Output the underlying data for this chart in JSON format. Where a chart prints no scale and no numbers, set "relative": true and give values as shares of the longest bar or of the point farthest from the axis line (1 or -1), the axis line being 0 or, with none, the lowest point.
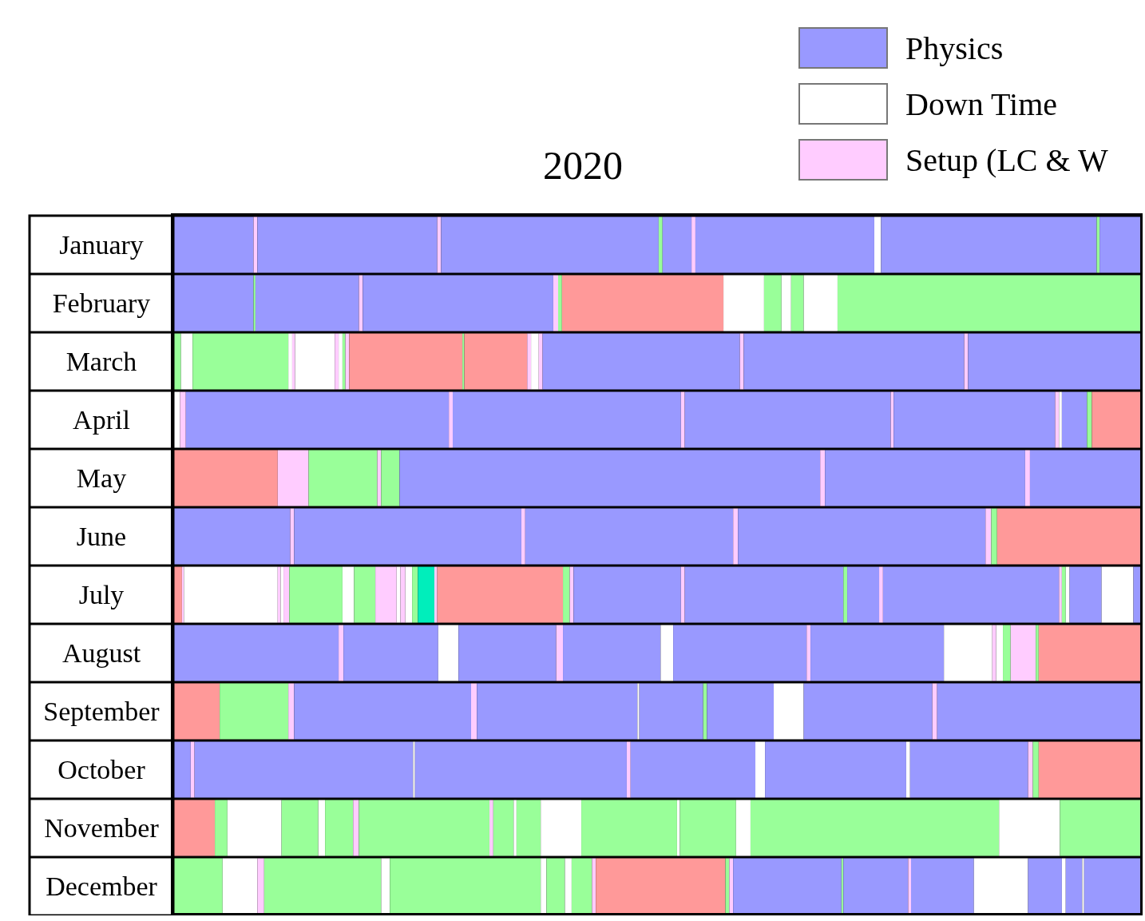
{
  "chart_data": [
    {
      "type": "bar",
      "orientation": "horizontal",
      "stacked": true,
      "relative": true,
      "title": "2020",
      "legend": "top right",
      "categories": [
        "January"
      ],
      "series": [
        {
          "name": "Physics",
          "color": "#9999ff",
          "values": [
            null
          ]
        },
        {
          "name": "Down Time",
          "color": "#ffffff",
          "values": [
            null
          ]
        },
        {
          "name": "Setup (LC & W",
          "color": "#ffccff",
          "values": [
            null
          ]
        },
        {
          "color": "#9999ff",
          "values": [
            0.083
          ]
        },
        {
          "color": "#ffccff",
          "values": [
            0.004
          ]
        },
        {
          "color": "#9999ff",
          "values": [
            0.186
          ]
        },
        {
          "color": "#ffccff",
          "values": [
            0.004
          ]
        },
        {
          "color": "#9999ff",
          "values": [
            0.225
          ]
        },
        {
          "color": "#99ff99",
          "values": [
            0.004
          ]
        },
        {
          "color": "#9999ff",
          "values": [
            0.03
          ]
        },
        {
          "color": "#ffccff",
          "values": [
            0.004
          ]
        },
        {
          "color": "#9999ff",
          "values": [
            0.185
          ]
        },
        {
          "color": "#ffffff",
          "values": [
            0.007
          ]
        },
        {
          "color": "#9999ff",
          "values": [
            0.223
          ]
        },
        {
          "color": "#99ff99",
          "values": [
            0.003
          ]
        },
        {
          "color": "#9999ff",
          "values": [
            0.042
          ]
        }
      ]
    },
    {
      "type": "bar",
      "orientation": "horizontal",
      "stacked": true,
      "relative": true,
      "categories": [
        "February"
      ],
      "series": [
        {
          "color": "#9999ff",
          "values": [
            0.083
          ]
        },
        {
          "color": "#99ff99",
          "values": [
            0.002
          ]
        },
        {
          "color": "#9999ff",
          "values": [
            0.107
          ]
        },
        {
          "color": "#ffccff",
          "values": [
            0.004
          ]
        },
        {
          "color": "#9999ff",
          "values": [
            0.197
          ]
        },
        {
          "color": "#ffccff",
          "values": [
            0.005
          ]
        },
        {
          "color": "#99ff99",
          "values": [
            0.004
          ]
        },
        {
          "color": "#ff9999",
          "values": [
            0.167
          ]
        },
        {
          "color": "#ffffff",
          "values": [
            0.042
          ]
        },
        {
          "color": "#99ff99",
          "values": [
            0.018
          ]
        },
        {
          "color": "#ffffff",
          "values": [
            0.01
          ]
        },
        {
          "color": "#99ff99",
          "values": [
            0.013
          ]
        },
        {
          "color": "#ffffff",
          "values": [
            0.035
          ]
        },
        {
          "color": "#99ff99",
          "values": [
            0.313
          ]
        }
      ]
    },
    {
      "type": "bar",
      "orientation": "horizontal",
      "stacked": true,
      "relative": true,
      "categories": [
        "March"
      ],
      "series": [
        {
          "color": "#99ff99",
          "values": [
            0.008
          ]
        },
        {
          "color": "#ffffff",
          "values": [
            0.012
          ]
        },
        {
          "color": "#99ff99",
          "values": [
            0.099
          ]
        },
        {
          "color": "#ffffff",
          "values": [
            0.004
          ]
        },
        {
          "color": "#ffccff",
          "values": [
            0.003
          ]
        },
        {
          "color": "#ffffff",
          "values": [
            0.041
          ]
        },
        {
          "color": "#ffccff",
          "values": [
            0.004
          ]
        },
        {
          "color": "#ffffff",
          "values": [
            0.004
          ]
        },
        {
          "color": "#99ff99",
          "values": [
            0.003
          ]
        },
        {
          "color": "#ffccff",
          "values": [
            0.004
          ]
        },
        {
          "color": "#ff9999",
          "values": [
            0.117
          ]
        },
        {
          "color": "#99ff99",
          "values": [
            0.002
          ]
        },
        {
          "color": "#ff9999",
          "values": [
            0.065
          ]
        },
        {
          "color": "#ffccff",
          "values": [
            0.004
          ]
        },
        {
          "color": "#ffffff",
          "values": [
            0.008
          ]
        },
        {
          "color": "#ffccff",
          "values": [
            0.004
          ]
        },
        {
          "color": "#9999ff",
          "values": [
            0.204
          ]
        },
        {
          "color": "#ffccff",
          "values": [
            0.004
          ]
        },
        {
          "color": "#9999ff",
          "values": [
            0.228
          ]
        },
        {
          "color": "#ffccff",
          "values": [
            0.004
          ]
        },
        {
          "color": "#9999ff",
          "values": [
            0.178
          ]
        }
      ]
    },
    {
      "type": "bar",
      "orientation": "horizontal",
      "stacked": true,
      "relative": true,
      "categories": [
        "April"
      ],
      "series": [
        {
          "color": "#ffffff",
          "values": [
            0.007
          ]
        },
        {
          "color": "#ffccff",
          "values": [
            0.006
          ]
        },
        {
          "color": "#9999ff",
          "values": [
            0.272
          ]
        },
        {
          "color": "#ffccff",
          "values": [
            0.004
          ]
        },
        {
          "color": "#9999ff",
          "values": [
            0.236
          ]
        },
        {
          "color": "#ffccff",
          "values": [
            0.004
          ]
        },
        {
          "color": "#9999ff",
          "values": [
            0.213
          ]
        },
        {
          "color": "#ffccff",
          "values": [
            0.003
          ]
        },
        {
          "color": "#9999ff",
          "values": [
            0.167
          ]
        },
        {
          "color": "#ffccff",
          "values": [
            0.004
          ]
        },
        {
          "color": "#ffffff",
          "values": [
            0.003
          ]
        },
        {
          "color": "#9999ff",
          "values": [
            0.026
          ]
        },
        {
          "color": "#99ff99",
          "values": [
            0.005
          ]
        },
        {
          "color": "#ff9999",
          "values": [
            0.05
          ]
        }
      ]
    },
    {
      "type": "bar",
      "orientation": "horizontal",
      "stacked": true,
      "relative": true,
      "categories": [
        "May"
      ],
      "series": [
        {
          "color": "#ff9999",
          "values": [
            0.108
          ]
        },
        {
          "color": "#ffccff",
          "values": [
            0.032
          ]
        },
        {
          "color": "#99ff99",
          "values": [
            0.071
          ]
        },
        {
          "color": "#ffccff",
          "values": [
            0.004
          ]
        },
        {
          "color": "#99ff99",
          "values": [
            0.019
          ]
        },
        {
          "color": "#9999ff",
          "values": [
            0.435
          ]
        },
        {
          "color": "#ffccff",
          "values": [
            0.005
          ]
        },
        {
          "color": "#9999ff",
          "values": [
            0.207
          ]
        },
        {
          "color": "#ffccff",
          "values": [
            0.005
          ]
        },
        {
          "color": "#9999ff",
          "values": [
            0.114
          ]
        }
      ]
    },
    {
      "type": "bar",
      "orientation": "horizontal",
      "stacked": true,
      "relative": true,
      "categories": [
        "June"
      ],
      "series": [
        {
          "color": "#9999ff",
          "values": [
            0.121
          ]
        },
        {
          "color": "#ffccff",
          "values": [
            0.004
          ]
        },
        {
          "color": "#9999ff",
          "values": [
            0.235
          ]
        },
        {
          "color": "#ffccff",
          "values": [
            0.004
          ]
        },
        {
          "color": "#9999ff",
          "values": [
            0.215
          ]
        },
        {
          "color": "#ffccff",
          "values": [
            0.005
          ]
        },
        {
          "color": "#9999ff",
          "values": [
            0.256
          ]
        },
        {
          "color": "#ffccff",
          "values": [
            0.006
          ]
        },
        {
          "color": "#99ff99",
          "values": [
            0.006
          ]
        },
        {
          "color": "#ff9999",
          "values": [
            0.148
          ]
        }
      ]
    },
    {
      "type": "bar",
      "orientation": "horizontal",
      "stacked": true,
      "relative": true,
      "categories": [
        "July"
      ],
      "series": [
        {
          "color": "#ff9999",
          "values": [
            0.009
          ]
        },
        {
          "color": "#ffccff",
          "values": [
            0.002
          ]
        },
        {
          "color": "#ffffff",
          "values": [
            0.097
          ]
        },
        {
          "color": "#ffccff",
          "values": [
            0.003
          ]
        },
        {
          "color": "#ffffff",
          "values": [
            0.003
          ]
        },
        {
          "color": "#ffccff",
          "values": [
            0.006
          ]
        },
        {
          "color": "#99ff99",
          "values": [
            0.055
          ]
        },
        {
          "color": "#ffffff",
          "values": [
            0.012
          ]
        },
        {
          "color": "#99ff99",
          "values": [
            0.022
          ]
        },
        {
          "color": "#ffccff",
          "values": [
            0.022
          ]
        },
        {
          "color": "#ffffff",
          "values": [
            0.004
          ]
        },
        {
          "color": "#ffccff",
          "values": [
            0.005
          ]
        },
        {
          "color": "#ffffff",
          "values": [
            0.007
          ]
        },
        {
          "color": "#99ff99",
          "values": [
            0.006
          ]
        },
        {
          "color": "#00eebb",
          "values": [
            0.017
          ]
        },
        {
          "color": "#ffccff",
          "values": [
            0.003
          ]
        },
        {
          "color": "#ff9999",
          "values": [
            0.13
          ]
        },
        {
          "color": "#99ff99",
          "values": [
            0.007
          ]
        },
        {
          "color": "#ffccff",
          "values": [
            0.004
          ]
        },
        {
          "color": "#9999ff",
          "values": [
            0.111
          ]
        },
        {
          "color": "#ffccff",
          "values": [
            0.004
          ]
        },
        {
          "color": "#9999ff",
          "values": [
            0.164
          ]
        },
        {
          "color": "#99ff99",
          "values": [
            0.004
          ]
        },
        {
          "color": "#9999ff",
          "values": [
            0.033
          ]
        },
        {
          "color": "#ffccff",
          "values": [
            0.004
          ]
        },
        {
          "color": "#9999ff",
          "values": [
            0.182
          ]
        },
        {
          "color": "#ffccff",
          "values": [
            0.003
          ]
        },
        {
          "color": "#99ff99",
          "values": [
            0.004
          ]
        },
        {
          "color": "#ffffff",
          "values": [
            0.004
          ]
        },
        {
          "color": "#9999ff",
          "values": [
            0.033
          ]
        },
        {
          "color": "#ffffff",
          "values": [
            0.033
          ]
        },
        {
          "color": "#9999ff",
          "values": [
            0.007
          ]
        }
      ]
    },
    {
      "type": "bar",
      "orientation": "horizontal",
      "stacked": true,
      "relative": true,
      "categories": [
        "August"
      ],
      "series": [
        {
          "color": "#9999ff",
          "values": [
            0.171
          ]
        },
        {
          "color": "#ffccff",
          "values": [
            0.005
          ]
        },
        {
          "color": "#9999ff",
          "values": [
            0.098
          ]
        },
        {
          "color": "#ffffff",
          "values": [
            0.021
          ]
        },
        {
          "color": "#9999ff",
          "values": [
            0.101
          ]
        },
        {
          "color": "#ffccff",
          "values": [
            0.007
          ]
        },
        {
          "color": "#9999ff",
          "values": [
            0.101
          ]
        },
        {
          "color": "#ffffff",
          "values": [
            0.013
          ]
        },
        {
          "color": "#9999ff",
          "values": [
            0.138
          ]
        },
        {
          "color": "#ffccff",
          "values": [
            0.004
          ]
        },
        {
          "color": "#9999ff",
          "values": [
            0.138
          ]
        },
        {
          "color": "#ffffff",
          "values": [
            0.05
          ]
        },
        {
          "color": "#ffccff",
          "values": [
            0.004
          ]
        },
        {
          "color": "#ffffff",
          "values": [
            0.007
          ]
        },
        {
          "color": "#99ff99",
          "values": [
            0.008
          ]
        },
        {
          "color": "#ffccff",
          "values": [
            0.026
          ]
        },
        {
          "color": "#99ff99",
          "values": [
            0.003
          ]
        },
        {
          "color": "#ff9999",
          "values": [
            0.105
          ]
        }
      ]
    },
    {
      "type": "bar",
      "orientation": "horizontal",
      "stacked": true,
      "relative": true,
      "categories": [
        "September"
      ],
      "series": [
        {
          "color": "#ff9999",
          "values": [
            0.048
          ]
        },
        {
          "color": "#99ff99",
          "values": [
            0.071
          ]
        },
        {
          "color": "#ffccff",
          "values": [
            0.006
          ]
        },
        {
          "color": "#9999ff",
          "values": [
            0.183
          ]
        },
        {
          "color": "#ffccff",
          "values": [
            0.006
          ]
        },
        {
          "color": "#9999ff",
          "values": [
            0.166
          ]
        },
        {
          "color": "#ffffff",
          "values": [
            0.002
          ]
        },
        {
          "color": "#9999ff",
          "values": [
            0.066
          ]
        },
        {
          "color": "#99ff99",
          "values": [
            0.004
          ]
        },
        {
          "color": "#9999ff",
          "values": [
            0.069
          ]
        },
        {
          "color": "#ffffff",
          "values": [
            0.031
          ]
        },
        {
          "color": "#9999ff",
          "values": [
            0.133
          ]
        },
        {
          "color": "#ffccff",
          "values": [
            0.005
          ]
        },
        {
          "color": "#9999ff",
          "values": [
            0.21
          ]
        }
      ]
    },
    {
      "type": "bar",
      "orientation": "horizontal",
      "stacked": true,
      "relative": true,
      "categories": [
        "October"
      ],
      "series": [
        {
          "color": "#9999ff",
          "values": [
            0.018
          ]
        },
        {
          "color": "#ffccff",
          "values": [
            0.004
          ]
        },
        {
          "color": "#9999ff",
          "values": [
            0.226
          ]
        },
        {
          "color": "#ffffff",
          "values": [
            0.002
          ]
        },
        {
          "color": "#9999ff",
          "values": [
            0.219
          ]
        },
        {
          "color": "#ffccff",
          "values": [
            0.004
          ]
        },
        {
          "color": "#9999ff",
          "values": [
            0.129
          ]
        },
        {
          "color": "#ffffff",
          "values": [
            0.01
          ]
        },
        {
          "color": "#9999ff",
          "values": [
            0.146
          ]
        },
        {
          "color": "#ffffff",
          "values": [
            0.004
          ]
        },
        {
          "color": "#9999ff",
          "values": [
            0.122
          ]
        },
        {
          "color": "#ffccff",
          "values": [
            0.005
          ]
        },
        {
          "color": "#99ff99",
          "values": [
            0.006
          ]
        },
        {
          "color": "#ff9999",
          "values": [
            0.105
          ]
        }
      ]
    },
    {
      "type": "bar",
      "orientation": "horizontal",
      "stacked": true,
      "relative": true,
      "categories": [
        "November"
      ],
      "series": [
        {
          "color": "#ff9999",
          "values": [
            0.043
          ]
        },
        {
          "color": "#99ff99",
          "values": [
            0.013
          ]
        },
        {
          "color": "#ffffff",
          "values": [
            0.056
          ]
        },
        {
          "color": "#99ff99",
          "values": [
            0.038
          ]
        },
        {
          "color": "#ffffff",
          "values": [
            0.007
          ]
        },
        {
          "color": "#99ff99",
          "values": [
            0.029
          ]
        },
        {
          "color": "#ffccff",
          "values": [
            0.006
          ]
        },
        {
          "color": "#99ff99",
          "values": [
            0.135
          ]
        },
        {
          "color": "#ffccff",
          "values": [
            0.004
          ]
        },
        {
          "color": "#99ff99",
          "values": [
            0.021
          ]
        },
        {
          "color": "#ffffff",
          "values": [
            0.003
          ]
        },
        {
          "color": "#99ff99",
          "values": [
            0.025
          ]
        },
        {
          "color": "#ffffff",
          "values": [
            0.042
          ]
        },
        {
          "color": "#99ff99",
          "values": [
            0.099
          ]
        },
        {
          "color": "#ffffff",
          "values": [
            0.003
          ]
        },
        {
          "color": "#99ff99",
          "values": [
            0.058
          ]
        },
        {
          "color": "#ffffff",
          "values": [
            0.015
          ]
        },
        {
          "color": "#99ff99",
          "values": [
            0.257
          ]
        },
        {
          "color": "#ffffff",
          "values": [
            0.063
          ]
        },
        {
          "color": "#99ff99",
          "values": [
            0.083
          ]
        }
      ]
    },
    {
      "type": "bar",
      "orientation": "horizontal",
      "stacked": true,
      "relative": true,
      "categories": [
        "December"
      ],
      "series": [
        {
          "color": "#99ff99",
          "values": [
            0.051
          ]
        },
        {
          "color": "#ffffff",
          "values": [
            0.036
          ]
        },
        {
          "color": "#ffccff",
          "values": [
            0.007
          ]
        },
        {
          "color": "#99ff99",
          "values": [
            0.121
          ]
        },
        {
          "color": "#ffffff",
          "values": [
            0.009
          ]
        },
        {
          "color": "#99ff99",
          "values": [
            0.156
          ]
        },
        {
          "color": "#ffffff",
          "values": [
            0.006
          ]
        },
        {
          "color": "#99ff99",
          "values": [
            0.019
          ]
        },
        {
          "color": "#ffffff",
          "values": [
            0.007
          ]
        },
        {
          "color": "#99ff99",
          "values": [
            0.021
          ]
        },
        {
          "color": "#ffccff",
          "values": [
            0.004
          ]
        },
        {
          "color": "#ff9999",
          "values": [
            0.134
          ]
        },
        {
          "color": "#99ff99",
          "values": [
            0.004
          ]
        },
        {
          "color": "#ffccff",
          "values": [
            0.004
          ]
        },
        {
          "color": "#9999ff",
          "values": [
            0.112
          ]
        },
        {
          "color": "#99ff99",
          "values": [
            0.002
          ]
        },
        {
          "color": "#9999ff",
          "values": [
            0.067
          ]
        },
        {
          "color": "#ffccff",
          "values": [
            0.003
          ]
        },
        {
          "color": "#9999ff",
          "values": [
            0.065
          ]
        },
        {
          "color": "#ffffff",
          "values": [
            0.056
          ]
        },
        {
          "color": "#9999ff",
          "values": [
            0.035
          ]
        },
        {
          "color": "#ffffff",
          "values": [
            0.004
          ]
        },
        {
          "color": "#9999ff",
          "values": [
            0.017
          ]
        },
        {
          "color": "#ffffff",
          "values": [
            0.002
          ]
        },
        {
          "color": "#9999ff",
          "values": [
            0.058
          ]
        }
      ]
    }
  ]
}
